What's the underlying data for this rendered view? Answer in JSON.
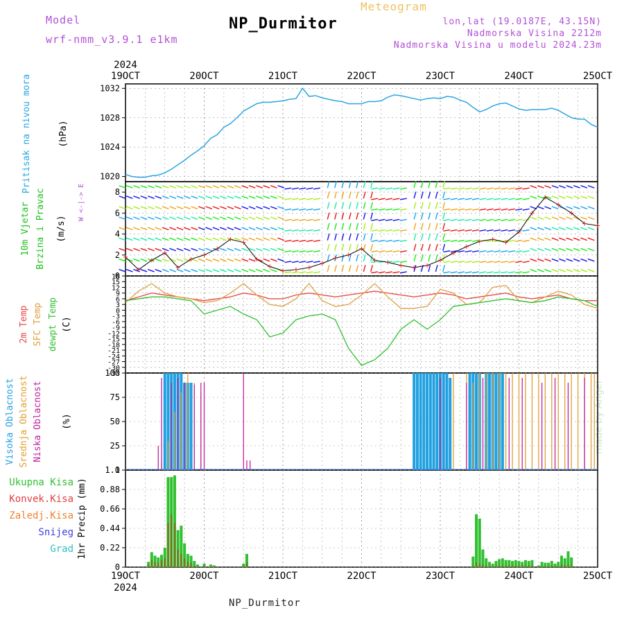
{
  "header": {
    "model_label": "Model",
    "model_name": "wrf-nmm_v3.9.1 e1km",
    "title": "NP_Durmitor",
    "subtitle": "Meteogram",
    "location": "lon,lat (19.0187E, 43.15N)",
    "altitude": "Nadmorska Visina 2212m",
    "model_altitude": "Nadmorska Visina u modelu 2024.23m"
  },
  "footer": {
    "station": "NP_Durmitor",
    "credit": "made by Angel"
  },
  "time_axis": {
    "year": "2024",
    "labels": [
      "19OCT",
      "20OCT",
      "21OCT",
      "22OCT",
      "23OCT",
      "24OCT",
      "25OCT"
    ]
  },
  "colors": {
    "pressure": "#2aa6e0",
    "temp2m": "#e84848",
    "sfc": "#e0a040",
    "dew": "#30c030",
    "high_cloud": "#20a0e0",
    "mid_cloud": "#e0a030",
    "low_cloud": "#c020a0",
    "precip": "#30c030",
    "conv": "#e04040",
    "frz": "#f08030",
    "snow": "#4040e0",
    "hail": "#30c0c0"
  },
  "chart_data": [
    {
      "type": "line",
      "panel": "pressure",
      "ylabel_lines": [
        "Pritisak na nivou mora",
        "(hPa)"
      ],
      "ylim": [
        1019.3,
        1032.6
      ],
      "yticks": [
        "1020",
        "1024",
        "1028",
        "1032"
      ],
      "x": [
        0,
        2,
        4,
        6,
        8,
        10,
        12,
        14,
        16,
        18,
        20,
        22,
        24,
        26,
        28,
        30,
        32,
        34,
        36,
        38,
        40,
        42,
        44,
        46,
        48,
        50,
        52,
        54,
        56,
        58,
        60,
        62,
        64,
        66,
        68,
        70,
        72,
        74,
        76,
        78,
        80,
        82,
        84,
        86,
        88,
        90,
        92,
        94,
        96,
        98,
        100,
        102,
        104,
        106,
        108,
        110,
        112,
        114,
        116,
        118,
        120,
        122,
        124,
        126,
        128,
        130,
        132,
        134,
        136,
        138,
        140,
        142,
        144
      ],
      "series": [
        {
          "values": [
            1020.3,
            1020.0,
            1019.9,
            1019.9,
            1020.1,
            1020.2,
            1020.5,
            1021.0,
            1021.6,
            1022.2,
            1022.9,
            1023.5,
            1024.2,
            1025.2,
            1025.7,
            1026.7,
            1027.2,
            1028.0,
            1028.9,
            1029.4,
            1029.9,
            1030.1,
            1030.1,
            1030.2,
            1030.3,
            1030.5,
            1030.6,
            1032.0,
            1030.9,
            1031.0,
            1030.7,
            1030.5,
            1030.3,
            1030.2,
            1029.9,
            1029.9,
            1029.9,
            1030.2,
            1030.2,
            1030.3,
            1030.8,
            1031.1,
            1031.0,
            1030.8,
            1030.6,
            1030.4,
            1030.6,
            1030.7,
            1030.6,
            1030.9,
            1030.8,
            1030.4,
            1030.1,
            1029.4,
            1028.8,
            1029.1,
            1029.6,
            1029.9,
            1030.0,
            1029.6,
            1029.2,
            1029.0,
            1029.1,
            1029.1,
            1029.1,
            1029.3,
            1029.0,
            1028.5,
            1028.0,
            1027.8,
            1027.8,
            1027.1,
            1026.7
          ]
        }
      ]
    },
    {
      "type": "scatter",
      "panel": "wind",
      "ylabel_lines": [
        "10m Vjetar",
        "Brzina i Pravac",
        "(m/s)"
      ],
      "compass": "W <-|-> E",
      "ylim": [
        0,
        9
      ],
      "yticks": [
        "0",
        "2",
        "4",
        "6",
        "8"
      ],
      "x": [
        0,
        4,
        8,
        12,
        16,
        20,
        24,
        28,
        32,
        36,
        40,
        44,
        48,
        52,
        56,
        60,
        64,
        68,
        72,
        76,
        80,
        84,
        88,
        92,
        96,
        100,
        104,
        108,
        112,
        116,
        120,
        124,
        128,
        132,
        136,
        140,
        144
      ],
      "series": [
        {
          "name": "speed",
          "values": [
            1.8,
            0.6,
            1.5,
            2.2,
            0.8,
            1.6,
            2.0,
            2.6,
            3.5,
            3.2,
            1.6,
            0.9,
            0.5,
            0.6,
            0.8,
            1.2,
            1.7,
            2.0,
            2.6,
            1.5,
            1.3,
            1.0,
            0.8,
            1.0,
            1.5,
            2.2,
            2.8,
            3.3,
            3.5,
            3.2,
            4.2,
            6.0,
            7.5,
            6.8,
            6.0,
            5.0,
            4.8
          ]
        }
      ]
    },
    {
      "type": "line",
      "panel": "temperature",
      "ylabel_lines": [
        "2m Temp",
        "SFC Temp",
        "dewpt Temp",
        "(C)"
      ],
      "ylim": [
        -33,
        18
      ],
      "yticks": [
        "18",
        "15",
        "12",
        "9",
        "6",
        "3",
        "0",
        "-3",
        "-6",
        "-9",
        "-12",
        "-15",
        "-18",
        "-21",
        "-24",
        "-27",
        "-30",
        "-33"
      ],
      "x": [
        0,
        4,
        8,
        12,
        16,
        20,
        24,
        28,
        32,
        36,
        40,
        44,
        48,
        52,
        56,
        60,
        64,
        68,
        72,
        76,
        80,
        84,
        88,
        92,
        96,
        100,
        104,
        108,
        112,
        116,
        120,
        124,
        128,
        132,
        136,
        140,
        144
      ],
      "series": [
        {
          "name": "2m",
          "values": [
            5,
            7,
            9,
            8,
            7,
            6,
            5,
            6,
            7,
            9,
            8,
            6,
            6,
            8,
            9,
            8,
            7,
            8,
            9,
            10,
            9,
            8,
            7,
            8,
            9,
            8,
            6,
            7,
            8,
            9,
            7,
            6,
            7,
            8,
            6,
            5,
            5
          ]
        },
        {
          "name": "SFC",
          "values": [
            4,
            10,
            14,
            9,
            7,
            6,
            4,
            5,
            9,
            14,
            8,
            3,
            2,
            6,
            14,
            5,
            2,
            3,
            8,
            14,
            7,
            1,
            1,
            2,
            11,
            9,
            3,
            4,
            12,
            13,
            5,
            4,
            7,
            10,
            8,
            3,
            1
          ]
        },
        {
          "name": "dewpt",
          "values": [
            5,
            6,
            7,
            7,
            6,
            5,
            -2,
            0,
            2,
            -2,
            -5,
            -14,
            -12,
            -5,
            -3,
            -2,
            -5,
            -20,
            -29,
            -26,
            -20,
            -10,
            -5,
            -10,
            -5,
            2,
            3,
            4,
            5,
            6,
            5,
            4,
            5,
            7,
            6,
            5,
            2
          ]
        }
      ]
    },
    {
      "type": "bar",
      "panel": "cloud",
      "ylabel_lines": [
        "Visoka Oblacnost",
        "Srednja Oblacnost",
        "Niska Oblacnost",
        "(%)"
      ],
      "ylim": [
        0,
        100
      ],
      "yticks": [
        "0",
        "25",
        "50",
        "75",
        "100"
      ],
      "series": [
        {
          "name": "high",
          "x": [
            12,
            13,
            14,
            15,
            16,
            17,
            18,
            19,
            20,
            88,
            89,
            90,
            91,
            92,
            93,
            94,
            95,
            96,
            97,
            98,
            99,
            105,
            106,
            107,
            108,
            110,
            111,
            112,
            113,
            114,
            115
          ],
          "values": [
            100,
            100,
            100,
            100,
            100,
            100,
            90,
            90,
            90,
            100,
            100,
            100,
            100,
            100,
            100,
            100,
            100,
            100,
            100,
            100,
            95,
            100,
            100,
            100,
            100,
            100,
            100,
            100,
            100,
            100,
            100
          ]
        },
        {
          "name": "mid",
          "x": [
            11,
            13,
            15,
            17,
            19,
            21,
            23,
            100,
            104,
            106,
            108,
            110,
            112,
            114,
            116,
            118,
            120,
            122,
            124,
            126,
            128,
            130,
            132,
            134,
            136,
            138,
            140,
            142,
            143
          ],
          "values": [
            10,
            30,
            60,
            80,
            100,
            90,
            80,
            100,
            100,
            90,
            100,
            100,
            100,
            100,
            100,
            100,
            100,
            100,
            100,
            100,
            100,
            100,
            100,
            100,
            100,
            100,
            100,
            100,
            100
          ]
        },
        {
          "name": "low",
          "x": [
            10,
            11,
            14,
            16,
            18,
            21,
            23,
            24,
            36,
            37,
            38,
            39,
            80,
            96,
            104,
            109,
            117,
            121,
            127,
            131,
            135,
            140
          ],
          "values": [
            25,
            95,
            90,
            95,
            90,
            88,
            90,
            90,
            100,
            10,
            10,
            0,
            0,
            95,
            90,
            95,
            95,
            95,
            90,
            95,
            90,
            95
          ]
        }
      ]
    },
    {
      "type": "bar",
      "panel": "precip",
      "ylabel": "1hr Precip (mm)",
      "legend": [
        "Ukupna Kisa",
        "Konvek.Kisa",
        "Zaledj.Kisa",
        "Snijeg",
        "Grad"
      ],
      "ylim": [
        0,
        1.1
      ],
      "yticks": [
        "0",
        "0.22",
        "0.44",
        "0.66",
        "0.88",
        "1.1"
      ],
      "x": [
        7,
        8,
        9,
        10,
        11,
        12,
        13,
        14,
        15,
        16,
        17,
        18,
        19,
        20,
        21,
        22,
        24,
        26,
        27,
        36,
        37,
        106,
        107,
        108,
        109,
        110,
        111,
        112,
        113,
        114,
        115,
        116,
        117,
        118,
        119,
        120,
        121,
        122,
        123,
        124,
        126,
        127,
        128,
        129,
        130,
        131,
        132,
        133,
        134,
        135,
        136
      ],
      "series": [
        {
          "name": "Ukupna Kisa",
          "values": [
            0.06,
            0.17,
            0.13,
            0.11,
            0.14,
            0.22,
            1.02,
            1.02,
            1.04,
            0.42,
            0.47,
            0.27,
            0.15,
            0.13,
            0.07,
            0.03,
            0.04,
            0.03,
            0.02,
            0.04,
            0.15,
            0.12,
            0.6,
            0.55,
            0.2,
            0.1,
            0.06,
            0.04,
            0.07,
            0.09,
            0.1,
            0.08,
            0.08,
            0.07,
            0.08,
            0.07,
            0.06,
            0.08,
            0.07,
            0.08,
            0.02,
            0.06,
            0.05,
            0.05,
            0.07,
            0.04,
            0.06,
            0.13,
            0.1,
            0.18,
            0.11
          ]
        },
        {
          "name": "Konvek.Kisa",
          "values": [
            0.02,
            0.08,
            0.06,
            0.05,
            0.08,
            0.1,
            0.5,
            0.6,
            0.5,
            0.2,
            0.15,
            0.1,
            0.06,
            0.05,
            0.02,
            0.01,
            0.02,
            0.01,
            0.01,
            0.02,
            0.05,
            0.02,
            0.05,
            0.04,
            0.03,
            0.02,
            0.01,
            0.01,
            0.02,
            0.02,
            0.02,
            0.02,
            0.02,
            0.02,
            0.02,
            0.02,
            0.02,
            0.02,
            0.02,
            0.02,
            0.01,
            0.01,
            0.01,
            0.01,
            0.02,
            0.01,
            0.01,
            0.03,
            0.02,
            0.03,
            0.02
          ]
        }
      ]
    }
  ]
}
